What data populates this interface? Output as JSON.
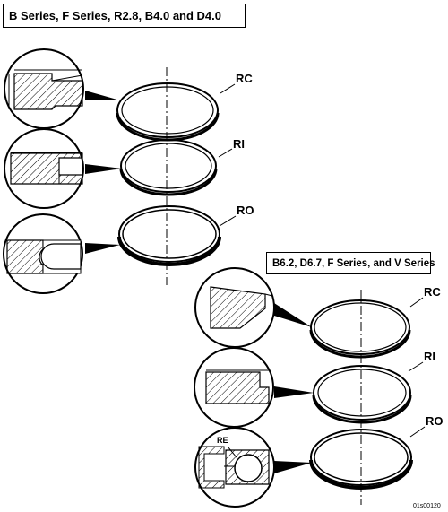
{
  "titles": {
    "top": "B Series, F Series, R2.8, B4.0 and D4.0",
    "bottom": "B6.2, D6.7, F Series, and V Series"
  },
  "labels": {
    "top_rc": "RC",
    "top_ri": "RI",
    "top_ro": "RO",
    "bot_rc": "RC",
    "bot_ri": "RI",
    "bot_ro": "RO",
    "re": "RE"
  },
  "figure_code": "01s00120"
}
